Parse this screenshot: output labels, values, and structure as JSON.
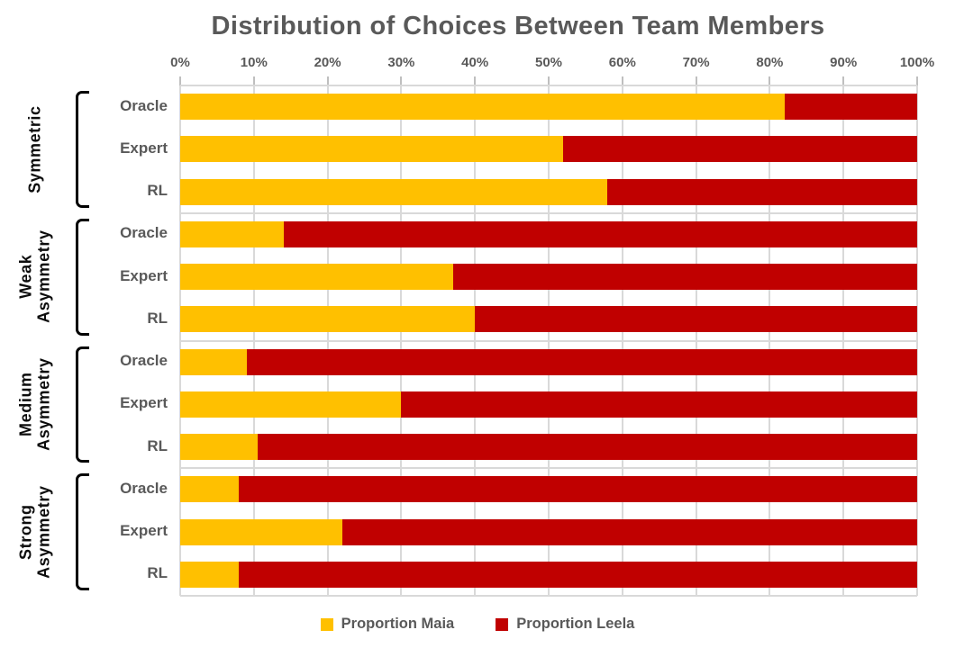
{
  "chart_data": {
    "type": "bar",
    "orientation": "horizontal",
    "stacked": true,
    "title": "Distribution of Choices Between Team Members",
    "x_ticks": [
      "0%",
      "10%",
      "20%",
      "30%",
      "40%",
      "50%",
      "60%",
      "70%",
      "80%",
      "90%",
      "100%"
    ],
    "xlim": [
      0,
      100
    ],
    "legend_position": "bottom",
    "grid": true,
    "groups": [
      {
        "label": "Symmetric",
        "rows": [
          {
            "label": "Oracle",
            "maia": 82,
            "leela": 18
          },
          {
            "label": "Expert",
            "maia": 52,
            "leela": 48
          },
          {
            "label": "RL",
            "maia": 58,
            "leela": 42
          }
        ]
      },
      {
        "label": "Weak Asymmetry",
        "rows": [
          {
            "label": "Oracle",
            "maia": 14,
            "leela": 86
          },
          {
            "label": "Expert",
            "maia": 37,
            "leela": 63
          },
          {
            "label": "RL",
            "maia": 40,
            "leela": 60
          }
        ]
      },
      {
        "label": "Medium Asymmetry",
        "rows": [
          {
            "label": "Oracle",
            "maia": 9,
            "leela": 91
          },
          {
            "label": "Expert",
            "maia": 30,
            "leela": 70
          },
          {
            "label": "RL",
            "maia": 10.5,
            "leela": 89.5
          }
        ]
      },
      {
        "label": "Strong Asymmetry",
        "rows": [
          {
            "label": "Oracle",
            "maia": 8,
            "leela": 92
          },
          {
            "label": "Expert",
            "maia": 22,
            "leela": 78
          },
          {
            "label": "RL",
            "maia": 8,
            "leela": 92
          }
        ]
      }
    ],
    "series": [
      {
        "name": "Proportion Maia",
        "color": "#FFC000"
      },
      {
        "name": "Proportion Leela",
        "color": "#C00000"
      }
    ],
    "colors": {
      "grid": "#D9D9D9",
      "tick_mark": "#BFBFBF",
      "title_text": "#595959",
      "tick_text": "#595959",
      "row_label_text": "#595959",
      "group_label_text": "#0D0D0D",
      "legend_text": "#595959",
      "bracket": "#000000",
      "background": "#FFFFFF"
    }
  }
}
